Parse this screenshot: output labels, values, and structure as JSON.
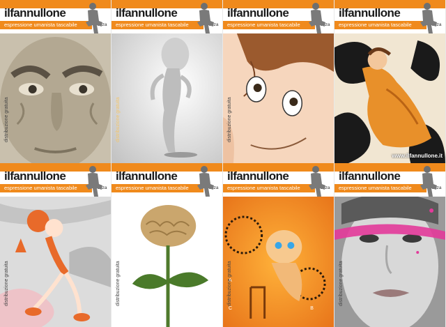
{
  "covers": [
    {
      "title": "ilfannullone",
      "subtitle": "espressione umanista tascabile",
      "city": "monza",
      "side_label": "distribuzione gratuita",
      "url": ""
    },
    {
      "title": "ilfannullone",
      "subtitle": "espressione umanista tascabile",
      "city": "monza",
      "side_label": "distribuzione gratuita",
      "url": ""
    },
    {
      "title": "ilfannullone",
      "subtitle": "espressione umanista tascabile",
      "city": "monza",
      "side_label": "distribuzione gratuita",
      "url": ""
    },
    {
      "title": "ilfannullone",
      "subtitle": "espressione umanista tascabile",
      "city": "monza",
      "side_label": "",
      "url": "www.ilfannullone.it"
    },
    {
      "title": "ilfannullone",
      "subtitle": "espressione umanista tascabile",
      "city": "monza",
      "side_label": "distribuzione gratuita",
      "url": ""
    },
    {
      "title": "ilfannullone",
      "subtitle": "espressione umanista tascabile",
      "city": "monza",
      "side_label": "distribuzione gratuita",
      "url": ""
    },
    {
      "title": "ilfannullone",
      "subtitle": "espressione umanista tascabile",
      "city": "monza",
      "side_label": "distribuzione gratuita",
      "url": ""
    },
    {
      "title": "ilfannullone",
      "subtitle": "espressione umanista tascabile",
      "city": "monza",
      "side_label": "distribuzione gratuita",
      "url": ""
    }
  ],
  "colors": {
    "brand_orange": "#f08a1c",
    "title_black": "#1a1a1a"
  },
  "icons": {
    "mascot": "sitting-figure-icon"
  }
}
